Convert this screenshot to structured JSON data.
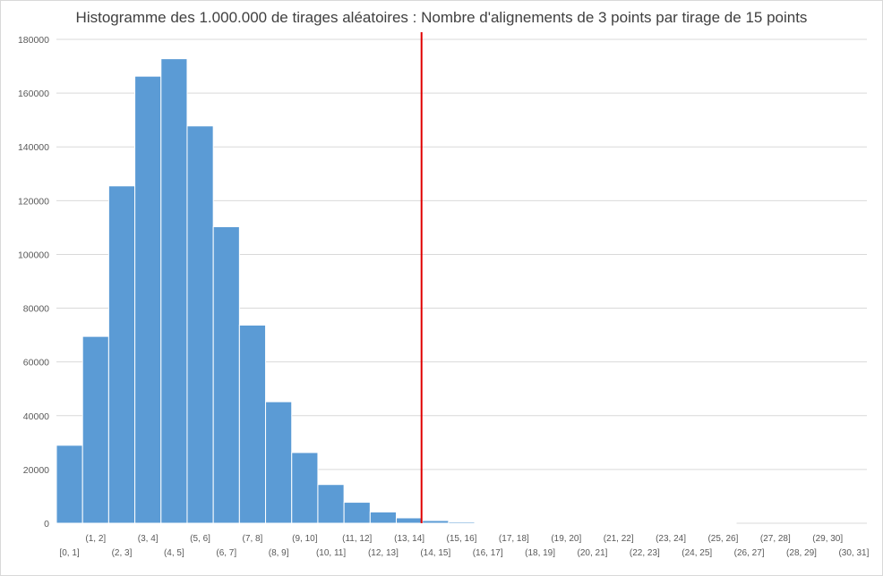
{
  "chart_data": {
    "type": "bar",
    "title": "Histogramme des 1.000.000 de tirages aléatoires : Nombre d'alignements de 3 points par tirage de 15 points",
    "xlabel": "",
    "ylabel": "",
    "ylim": [
      0,
      180000
    ],
    "y_ticks": [
      "0",
      "20000",
      "40000",
      "60000",
      "80000",
      "100000",
      "120000",
      "140000",
      "160000",
      "180000"
    ],
    "grid": true,
    "categories": [
      "[0, 1]",
      "(1, 2]",
      "(2, 3]",
      "(3, 4]",
      "(4, 5]",
      "(5, 6]",
      "(6, 7]",
      "(7, 8]",
      "(8, 9]",
      "(9, 10]",
      "(10, 11]",
      "(11, 12]",
      "(12, 13]",
      "(13, 14]",
      "(14, 15]",
      "(15, 16]",
      "(16, 17]",
      "(17, 18]",
      "(18, 19]",
      "(19, 20]",
      "(20, 21]",
      "(21, 22]",
      "(22, 23]",
      "(23, 24]",
      "(24, 25]",
      "(25, 26]",
      "(26, 27]",
      "(27, 28]",
      "(28, 29]",
      "(29, 30]",
      "(30, 31]"
    ],
    "values": [
      29000,
      69500,
      125500,
      166300,
      172800,
      147800,
      110300,
      73700,
      45200,
      26300,
      14400,
      7800,
      4200,
      2000,
      1000,
      500,
      200,
      100,
      50,
      20,
      10,
      5,
      3,
      2,
      1,
      1,
      0,
      0,
      0,
      0,
      0
    ],
    "bar_color": "#5b9bd5",
    "marker_line": {
      "after_category": "(13, 14]",
      "color": "#e00000"
    }
  }
}
